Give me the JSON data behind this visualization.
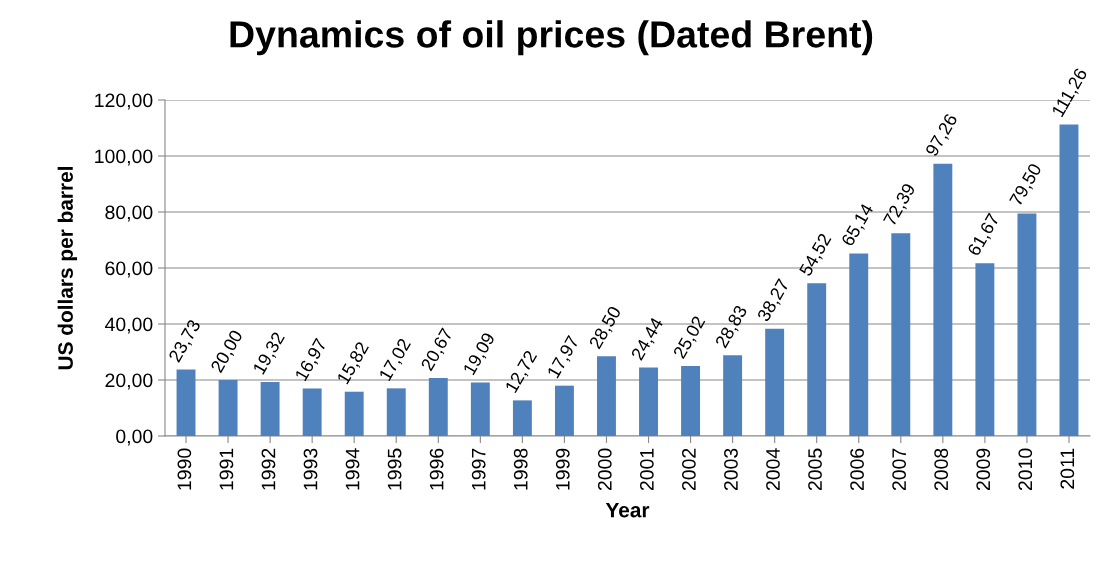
{
  "chart_data": {
    "type": "bar",
    "title": "Dynamics of oil prices (Dated Brent)",
    "xlabel": "Year",
    "ylabel": "US dollars per barrel",
    "categories": [
      "1990",
      "1991",
      "1992",
      "1993",
      "1994",
      "1995",
      "1996",
      "1997",
      "1998",
      "1999",
      "2000",
      "2001",
      "2002",
      "2003",
      "2004",
      "2005",
      "2006",
      "2007",
      "2008",
      "2009",
      "2010",
      "2011"
    ],
    "values": [
      23.73,
      20.0,
      19.32,
      16.97,
      15.82,
      17.02,
      20.67,
      19.09,
      12.72,
      17.97,
      28.5,
      24.44,
      25.02,
      28.83,
      38.27,
      54.52,
      65.14,
      72.39,
      97.26,
      61.67,
      79.5,
      111.26
    ],
    "value_labels": [
      "23,73",
      "20,00",
      "19,32",
      "16,97",
      "15,82",
      "17,02",
      "20,67",
      "19,09",
      "12,72",
      "17,97",
      "28,50",
      "24,44",
      "25,02",
      "28,83",
      "38,27",
      "54,52",
      "65,14",
      "72,39",
      "97,26",
      "61,67",
      "79,50",
      "111,26"
    ],
    "color": "#4f81bd",
    "ylim": [
      0,
      120
    ],
    "yticks": [
      {
        "value": 0,
        "label": "0,00"
      },
      {
        "value": 20,
        "label": "20,00"
      },
      {
        "value": 40,
        "label": "40,00"
      },
      {
        "value": 60,
        "label": "60,00"
      },
      {
        "value": 80,
        "label": "80,00"
      },
      {
        "value": 100,
        "label": "100,00"
      },
      {
        "value": 120,
        "label": "120,00"
      }
    ],
    "grid": "y",
    "legend": false
  }
}
